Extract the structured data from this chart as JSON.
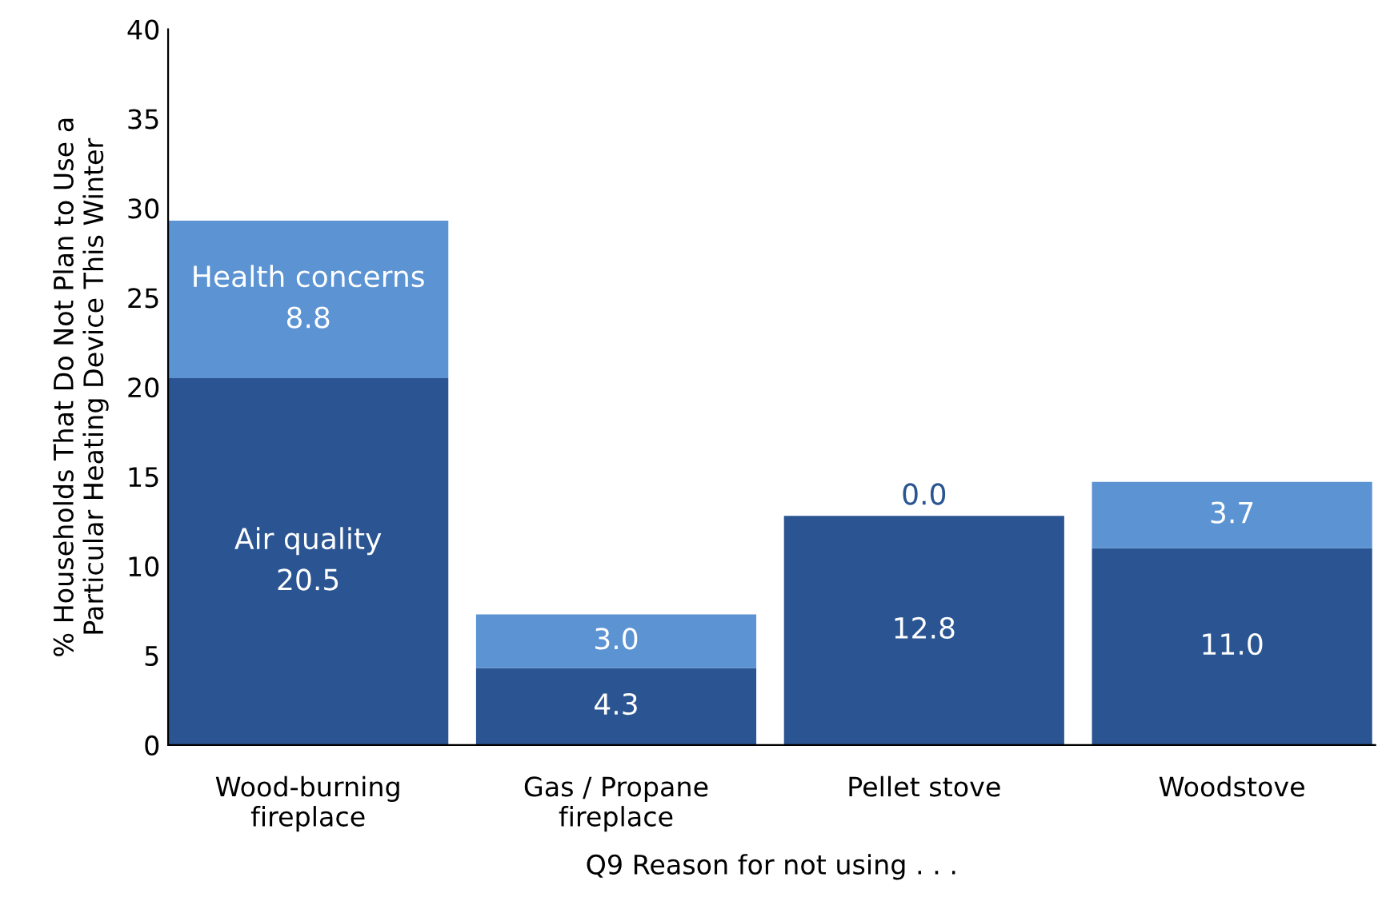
{
  "chart_data": {
    "type": "bar",
    "stacked": true,
    "ylabel": "% Households That Do Not Plan to Use a\nParticular Heating Device This Winter",
    "xlabel": "Q9 Reason for not using . . .",
    "categories": [
      "Wood-burning\nfireplace",
      "Gas / Propane\nfireplace",
      "Pellet stove",
      "Woodstove"
    ],
    "series": [
      {
        "name": "Air quality",
        "color": "#2a5592",
        "values": [
          20.5,
          4.3,
          12.8,
          11.0
        ],
        "value_labels": [
          "20.5",
          "4.3",
          "12.8",
          "11.0"
        ]
      },
      {
        "name": "Health concerns",
        "color": "#5b93d3",
        "values": [
          8.8,
          3.0,
          0.0,
          3.7
        ],
        "value_labels": [
          "8.8",
          "3.0",
          "0.0",
          "3.7"
        ]
      }
    ],
    "ylim": [
      0,
      40
    ],
    "yticks": [
      0,
      5,
      10,
      15,
      20,
      25,
      30,
      35,
      40
    ],
    "grid": false,
    "legend": false
  }
}
